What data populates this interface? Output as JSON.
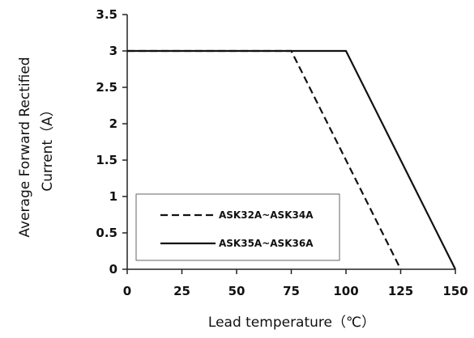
{
  "chart_data": {
    "type": "line",
    "title": "",
    "xlabel": "Lead temperature（℃）",
    "ylabel_lines": [
      "Average Forward Rectified",
      "Current（A）"
    ],
    "xlim": [
      0,
      150
    ],
    "ylim": [
      0,
      3.5
    ],
    "x_ticks": [
      0,
      25,
      50,
      75,
      100,
      125,
      150
    ],
    "y_ticks": [
      0,
      0.5,
      1,
      1.5,
      2,
      2.5,
      3,
      3.5
    ],
    "x_tick_labels": [
      "0",
      "25",
      "50",
      "75",
      "100",
      "125",
      "150"
    ],
    "y_tick_labels": [
      "0",
      "0.5",
      "1",
      "1.5",
      "2",
      "2.5",
      "3",
      "3.5"
    ],
    "grid": false,
    "legend_placement": "bottom-left",
    "series": [
      {
        "name": "ASK32A~ASK34A",
        "style": "dashed",
        "color": "#111111",
        "points": [
          [
            0,
            3
          ],
          [
            75,
            3
          ],
          [
            125,
            0
          ]
        ]
      },
      {
        "name": "ASK35A~ASK36A",
        "style": "solid",
        "color": "#111111",
        "points": [
          [
            0,
            3
          ],
          [
            100,
            3
          ],
          [
            150,
            0
          ]
        ]
      }
    ]
  }
}
